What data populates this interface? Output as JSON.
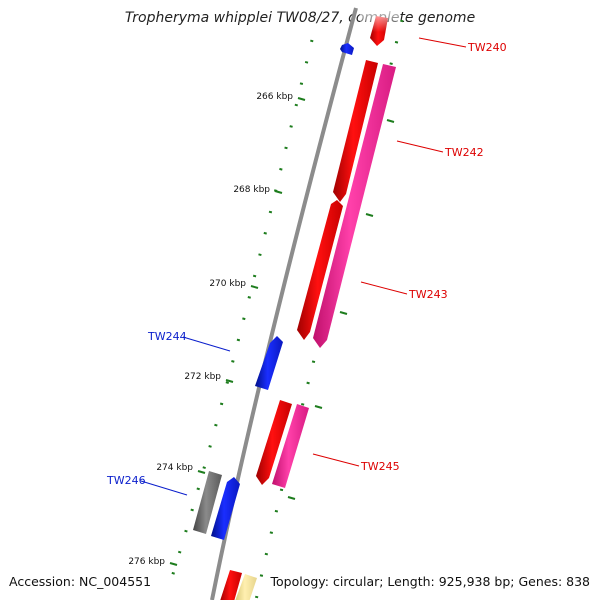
{
  "title": "Tropheryma whipplei TW08/27, complete genome",
  "footer": {
    "accession": "Accession: NC_004551",
    "topology": "Topology: circular; Length: 925,938 bp; Genes: 838"
  },
  "colors": {
    "backbone": "#8c8c8c",
    "tick": "#1e7d1e",
    "red_gene": "#ee0000",
    "pink_gene": "#ff2a9a",
    "blue_gene": "#0a1ee6",
    "grey_gene": "#6e6e6e",
    "yellow_gene": "#f0e29a",
    "label_red": "#dd0000",
    "label_blue": "#0a1ecc"
  },
  "ruler": [
    "266 kbp",
    "268 kbp",
    "270 kbp",
    "272 kbp",
    "274 kbp",
    "276 kbp"
  ],
  "gene_labels": [
    {
      "id": "TW240",
      "label": "TW240",
      "color": "red"
    },
    {
      "id": "TW242",
      "label": "TW242",
      "color": "red"
    },
    {
      "id": "TW243",
      "label": "TW243",
      "color": "red"
    },
    {
      "id": "TW244",
      "label": "TW244",
      "color": "blue"
    },
    {
      "id": "TW245",
      "label": "TW245",
      "color": "red"
    },
    {
      "id": "TW246",
      "label": "TW246",
      "color": "blue"
    }
  ]
}
